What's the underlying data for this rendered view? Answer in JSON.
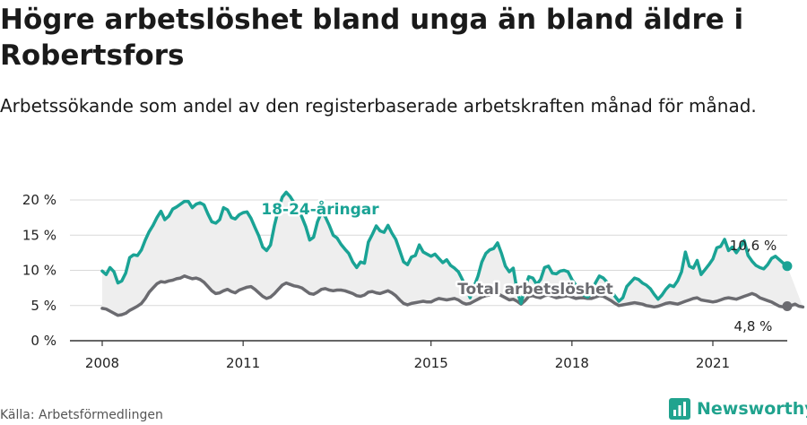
{
  "header": {
    "title": "Högre arbetslöshet bland unga än bland äldre i Robertsfors",
    "subtitle": "Arbetssökande som andel av den registerbaserade arbetskraften månad för månad."
  },
  "footer": {
    "source": "Källa: Arbetsförmedlingen",
    "brand": "Newsworthy"
  },
  "colors": {
    "youth": "#1aa395",
    "total": "#6b6b70",
    "band": "#eeeeee",
    "grid": "#d9d9d9",
    "brand": "#20a38e"
  },
  "icons": [
    "newsworthy-logo-icon"
  ],
  "chart_data": {
    "type": "line",
    "title": "",
    "xlabel": "",
    "ylabel": "",
    "x_ticks": [
      "2008",
      "2011",
      "2015",
      "2018",
      "2021"
    ],
    "y_ticks": [
      "0 %",
      "5 %",
      "10 %",
      "15 %",
      "20 %"
    ],
    "ylim": [
      0,
      20
    ],
    "grid": true,
    "x_start": "2008-01",
    "series": [
      {
        "name": "18-24-åringar",
        "end_label": "10,6 %",
        "values": [
          9.9,
          9.4,
          10.4,
          9.8,
          8.2,
          8.5,
          9.6,
          11.8,
          12.2,
          12.1,
          12.9,
          14.3,
          15.5,
          16.4,
          17.5,
          18.4,
          17.2,
          17.7,
          18.7,
          19.0,
          19.4,
          19.8,
          19.8,
          18.9,
          19.4,
          19.6,
          19.3,
          18.0,
          16.9,
          16.7,
          17.2,
          18.9,
          18.6,
          17.5,
          17.3,
          17.9,
          18.2,
          18.3,
          17.4,
          16.1,
          14.9,
          13.3,
          12.8,
          13.6,
          16.4,
          18.6,
          20.4,
          21.1,
          20.5,
          19.6,
          18.8,
          17.6,
          16.2,
          14.3,
          14.7,
          16.9,
          18.2,
          17.6,
          16.4,
          15.0,
          14.6,
          13.7,
          13.0,
          12.4,
          11.2,
          10.4,
          11.2,
          11.0,
          14.0,
          15.1,
          16.3,
          15.6,
          15.4,
          16.4,
          15.3,
          14.4,
          12.8,
          11.2,
          10.8,
          11.9,
          12.1,
          13.6,
          12.6,
          12.3,
          12.0,
          12.3,
          11.7,
          11.1,
          11.5,
          10.7,
          10.3,
          9.8,
          8.7,
          7.4,
          6.1,
          7.7,
          9.2,
          11.2,
          12.4,
          12.9,
          13.1,
          13.9,
          12.4,
          10.6,
          9.8,
          10.3,
          7.1,
          5.3,
          7.6,
          9.1,
          8.9,
          8.0,
          8.7,
          10.4,
          10.6,
          9.6,
          9.5,
          9.9,
          10.0,
          9.8,
          8.7,
          7.9,
          7.3,
          6.5,
          6.2,
          6.8,
          8.2,
          9.2,
          8.9,
          8.3,
          7.2,
          6.3,
          5.6,
          6.1,
          7.7,
          8.3,
          8.9,
          8.7,
          8.2,
          7.9,
          7.4,
          6.6,
          5.9,
          6.5,
          7.3,
          7.9,
          7.7,
          8.5,
          9.8,
          12.6,
          10.6,
          10.3,
          11.4,
          9.4,
          10.1,
          10.8,
          11.6,
          13.2,
          13.4,
          14.4,
          12.8,
          13.3,
          12.5,
          13.3,
          14.2,
          12.1,
          11.3,
          10.7,
          10.4,
          10.2,
          10.8,
          11.7,
          12.0,
          11.5,
          11.0,
          10.6
        ]
      },
      {
        "name": "Total arbetslöshet",
        "end_label": "4,8 %",
        "values": [
          4.6,
          4.5,
          4.2,
          3.9,
          3.6,
          3.7,
          3.9,
          4.3,
          4.6,
          4.9,
          5.3,
          6.0,
          6.9,
          7.5,
          8.1,
          8.4,
          8.3,
          8.5,
          8.6,
          8.8,
          8.9,
          9.2,
          9.0,
          8.8,
          8.9,
          8.7,
          8.3,
          7.7,
          7.1,
          6.7,
          6.8,
          7.1,
          7.3,
          7.0,
          6.8,
          7.2,
          7.4,
          7.6,
          7.7,
          7.3,
          6.8,
          6.3,
          6.0,
          6.2,
          6.7,
          7.3,
          7.9,
          8.2,
          8.0,
          7.8,
          7.7,
          7.5,
          7.1,
          6.7,
          6.6,
          6.9,
          7.3,
          7.4,
          7.2,
          7.1,
          7.2,
          7.2,
          7.1,
          6.9,
          6.7,
          6.4,
          6.3,
          6.5,
          6.9,
          7.0,
          6.8,
          6.7,
          6.9,
          7.1,
          6.8,
          6.4,
          5.8,
          5.3,
          5.1,
          5.3,
          5.4,
          5.5,
          5.6,
          5.5,
          5.5,
          5.8,
          6.0,
          5.9,
          5.8,
          5.9,
          6.0,
          5.8,
          5.4,
          5.2,
          5.3,
          5.6,
          5.9,
          6.2,
          6.4,
          6.5,
          6.6,
          6.7,
          6.4,
          6.1,
          5.8,
          5.9,
          5.6,
          5.2,
          5.7,
          6.3,
          6.4,
          6.2,
          6.1,
          6.4,
          6.5,
          6.3,
          6.1,
          6.2,
          6.3,
          6.4,
          6.2,
          6.0,
          6.1,
          6.1,
          6.0,
          6.0,
          6.2,
          6.4,
          6.3,
          6.0,
          5.7,
          5.3,
          5.0,
          5.1,
          5.2,
          5.3,
          5.4,
          5.3,
          5.2,
          5.0,
          4.9,
          4.8,
          4.9,
          5.1,
          5.3,
          5.4,
          5.3,
          5.2,
          5.4,
          5.6,
          5.8,
          6.0,
          6.1,
          5.8,
          5.7,
          5.6,
          5.5,
          5.6,
          5.8,
          6.0,
          6.1,
          6.0,
          5.9,
          6.1,
          6.3,
          6.5,
          6.7,
          6.5,
          6.1,
          5.9,
          5.7,
          5.5,
          5.2,
          4.9,
          4.8,
          4.9,
          5.0,
          5.2,
          4.9,
          4.8
        ]
      }
    ]
  }
}
